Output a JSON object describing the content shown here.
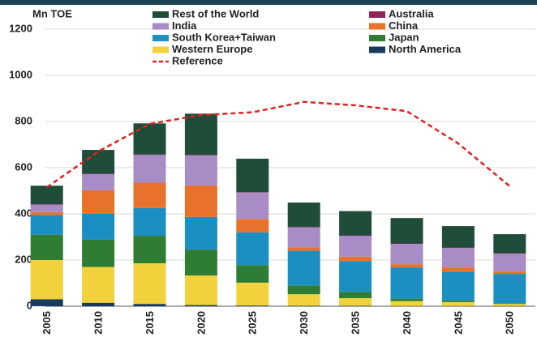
{
  "chart_data": {
    "type": "stacked_bar",
    "y_axis_label": "Mn TOE",
    "categories": [
      "2005",
      "2010",
      "2015",
      "2020",
      "2025",
      "2030",
      "2035",
      "2040",
      "2045",
      "2050"
    ],
    "series": [
      {
        "name": "Rest of the World",
        "color": "#1f4d3a",
        "values": [
          80,
          103,
          135,
          179,
          145,
          105,
          105,
          110,
          93,
          82
        ]
      },
      {
        "name": "Australia",
        "color": "#8e2457",
        "values": [
          2,
          2,
          2,
          2,
          2,
          2,
          2,
          2,
          2,
          2
        ]
      },
      {
        "name": "India",
        "color": "#a88cc6",
        "values": [
          32,
          70,
          120,
          130,
          114,
          87,
          90,
          88,
          87,
          78
        ]
      },
      {
        "name": "China",
        "color": "#e8722c",
        "values": [
          13,
          102,
          110,
          136,
          58,
          15,
          20,
          14,
          15,
          10
        ]
      },
      {
        "name": "South Korea+Taiwan",
        "color": "#1b8fc2",
        "values": [
          85,
          112,
          120,
          142,
          142,
          150,
          133,
          135,
          125,
          127
        ]
      },
      {
        "name": "Japan",
        "color": "#2f7d33",
        "values": [
          110,
          118,
          119,
          112,
          76,
          38,
          27,
          11,
          7,
          3
        ]
      },
      {
        "name": "Western Europe",
        "color": "#f2d23c",
        "values": [
          170,
          155,
          176,
          128,
          99,
          50,
          33,
          21,
          17,
          9
        ]
      },
      {
        "name": "North America",
        "color": "#173a5e",
        "values": [
          30,
          15,
          10,
          5,
          3,
          2,
          2,
          1,
          1,
          1
        ]
      }
    ],
    "reference": {
      "name": "Reference",
      "color": "#e02222",
      "values": [
        515,
        670,
        790,
        828,
        840,
        885,
        870,
        845,
        705,
        520
      ]
    },
    "ylim": [
      0,
      1200
    ],
    "yticks": [
      0,
      200,
      400,
      600,
      800,
      1000,
      1200
    ],
    "grid": true
  }
}
